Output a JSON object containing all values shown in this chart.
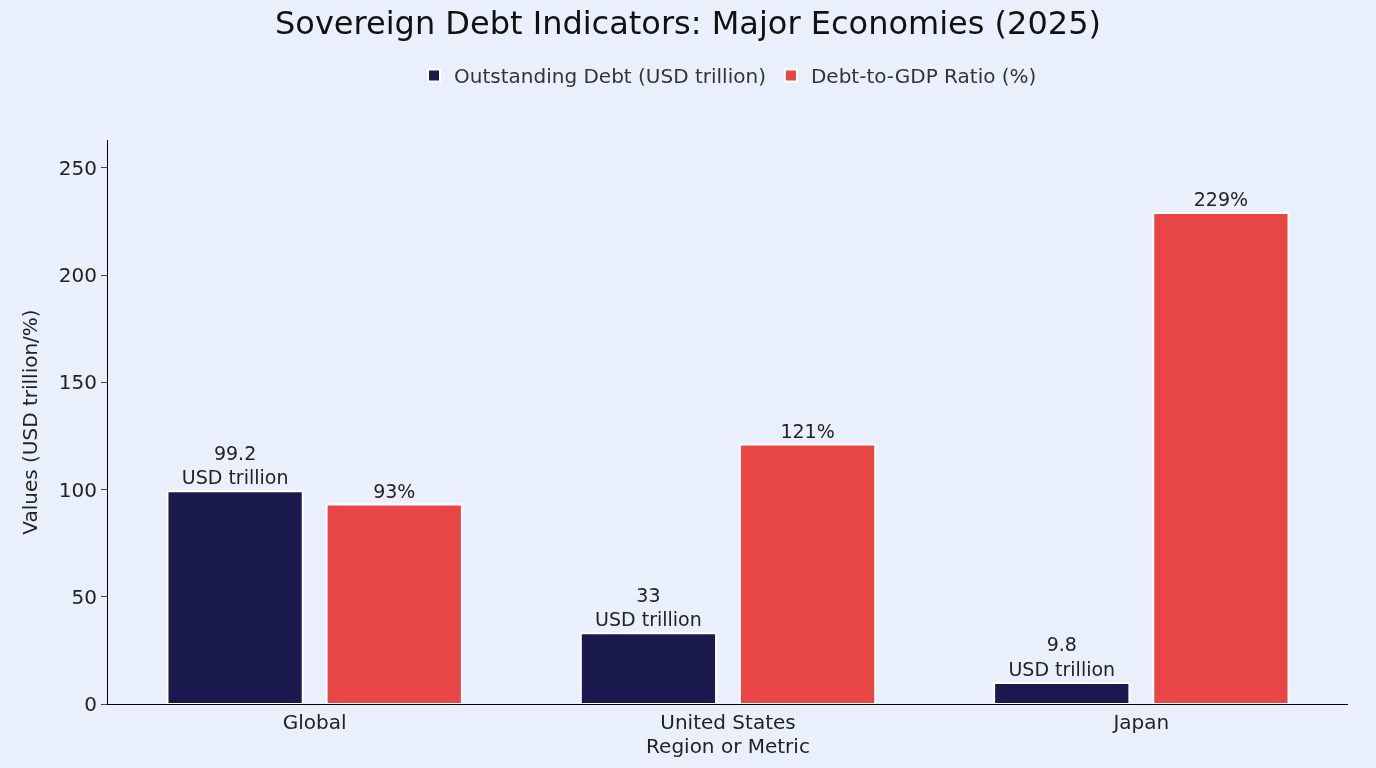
{
  "chart_data": {
    "type": "bar",
    "title": "Sovereign Debt Indicators: Major Economies (2025)",
    "xlabel": "Region or Metric",
    "ylabel": "Values (USD trillion/%)",
    "categories": [
      "Global",
      "United States",
      "Japan"
    ],
    "series": [
      {
        "name": "Outstanding Debt (USD trillion)",
        "color": "#1a1a4e",
        "values": [
          99.2,
          33,
          9.8
        ],
        "value_labels": [
          "99.2\nUSD trillion",
          "33\nUSD trillion",
          "9.8\nUSD trillion"
        ]
      },
      {
        "name": "Debt-to-GDP Ratio (%)",
        "color": "#e84545",
        "values": [
          93,
          121,
          229
        ],
        "value_labels": [
          "93%",
          "121%",
          "229%"
        ]
      }
    ],
    "ylim": [
      0,
      263
    ],
    "yticks": [
      0,
      50,
      100,
      150,
      200,
      250
    ],
    "grid": false,
    "legend": "top"
  }
}
